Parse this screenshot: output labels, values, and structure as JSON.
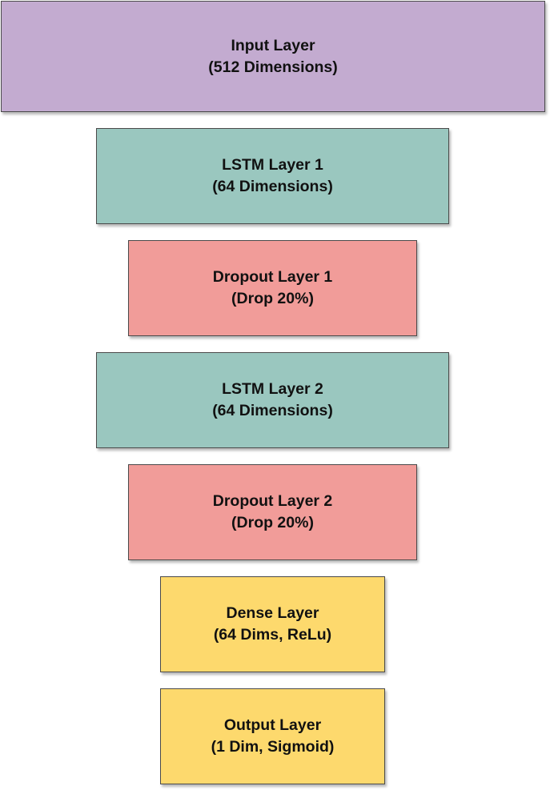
{
  "colors": {
    "input": "#c3abd0",
    "lstm": "#9ac7bf",
    "dropout": "#f19c99",
    "dense": "#fdd96d"
  },
  "layers": [
    {
      "name": "Input Layer",
      "detail": "(512 Dimensions)",
      "color": "#c3abd0"
    },
    {
      "name": "LSTM Layer 1",
      "detail": "(64 Dimensions)",
      "color": "#9ac7bf"
    },
    {
      "name": "Dropout Layer 1",
      "detail": "(Drop 20%)",
      "color": "#f19c99"
    },
    {
      "name": "LSTM Layer 2",
      "detail": "(64 Dimensions)",
      "color": "#9ac7bf"
    },
    {
      "name": "Dropout Layer 2",
      "detail": "(Drop 20%)",
      "color": "#f19c99"
    },
    {
      "name": "Dense Layer",
      "detail": "(64 Dims, ReLu)",
      "color": "#fdd96d"
    },
    {
      "name": "Output Layer",
      "detail": "(1 Dim, Sigmoid)",
      "color": "#fdd96d"
    }
  ]
}
